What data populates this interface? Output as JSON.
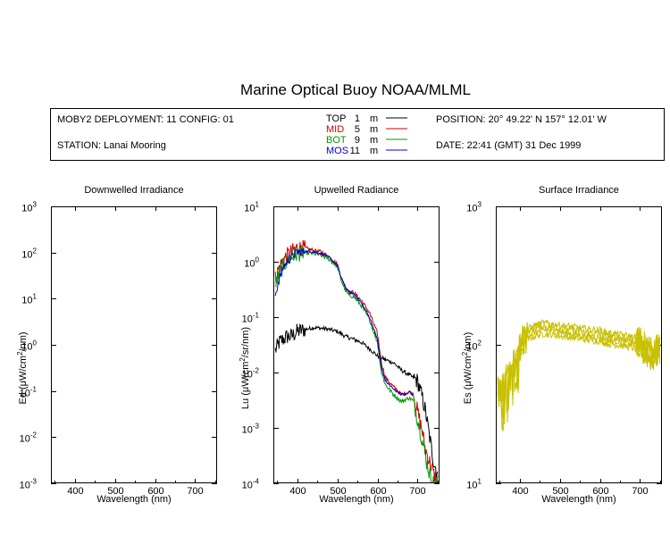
{
  "title": "Marine Optical Buoy NOAA/MLML",
  "info": {
    "deployment": "MOBY2 DEPLOYMENT: 11 CONFIG: 01",
    "station": "STATION: Lanai Mooring",
    "position": "POSITION: 20° 49.22' N   157° 12.01' W",
    "date": "DATE: 22:41 (GMT) 31 Dec 1999",
    "legend": [
      {
        "label": "TOP",
        "depth": "1",
        "unit": "m",
        "color": "#000000"
      },
      {
        "label": "MID",
        "depth": "5",
        "unit": "m",
        "color": "#cc0000"
      },
      {
        "label": "BOT",
        "depth": "9",
        "unit": "m",
        "color": "#009900"
      },
      {
        "label": "MOS",
        "depth": "11",
        "unit": "m",
        "color": "#0000cc"
      }
    ]
  },
  "chart_data": [
    {
      "type": "line",
      "title": "Downwelled Irradiance",
      "xlabel": "Wavelength (nm)",
      "ylabel_main": "Ed  (",
      "ylabel_mu": "μ",
      "ylabel_units": "W/cm",
      "ylabel_sup": "2",
      "ylabel_end": "/nm)",
      "xlim": [
        340,
        755
      ],
      "ylim": [
        0.001,
        1000
      ],
      "yscale": "log",
      "xticks": [
        "400",
        "500",
        "600",
        "700"
      ],
      "yticks": [
        {
          "base": "10",
          "exp": "-3"
        },
        {
          "base": "10",
          "exp": "-2"
        },
        {
          "base": "10",
          "exp": "-1"
        },
        {
          "base": "10",
          "exp": "0"
        },
        {
          "base": "10",
          "exp": "1"
        },
        {
          "base": "10",
          "exp": "2"
        },
        {
          "base": "10",
          "exp": "3"
        }
      ],
      "series": []
    },
    {
      "type": "line",
      "title": "Upwelled Radiance",
      "xlabel": "Wavelength (nm)",
      "ylabel_main": "Lu  (",
      "ylabel_mu": "μ",
      "ylabel_units": "W/cm",
      "ylabel_sup": "2",
      "ylabel_end": "/sr/nm)",
      "xlim": [
        340,
        755
      ],
      "ylim": [
        0.0001,
        10
      ],
      "yscale": "log",
      "xticks": [
        "400",
        "500",
        "600",
        "700"
      ],
      "yticks": [
        {
          "base": "10",
          "exp": "-4"
        },
        {
          "base": "10",
          "exp": "-3"
        },
        {
          "base": "10",
          "exp": "-2"
        },
        {
          "base": "10",
          "exp": "-1"
        },
        {
          "base": "10",
          "exp": "0"
        },
        {
          "base": "10",
          "exp": "1"
        }
      ],
      "series": [
        {
          "name": "TOP",
          "color": "#000000",
          "noise": 0.3,
          "x": [
            345,
            355,
            365,
            375,
            385,
            400,
            420,
            440,
            460,
            480,
            500,
            520,
            540,
            560,
            580,
            600,
            620,
            640,
            660,
            680,
            700,
            710,
            720,
            730,
            740,
            750
          ],
          "y": [
            0.025,
            0.035,
            0.04,
            0.045,
            0.045,
            0.055,
            0.06,
            0.065,
            0.063,
            0.06,
            0.055,
            0.045,
            0.04,
            0.035,
            0.027,
            0.02,
            0.017,
            0.015,
            0.011,
            0.009,
            0.007,
            0.004,
            0.002,
            0.0007,
            0.00025,
            0.00015
          ]
        },
        {
          "name": "MID",
          "color": "#cc0000",
          "noise": 0.3,
          "x": [
            345,
            355,
            365,
            375,
            385,
            400,
            420,
            440,
            460,
            480,
            500,
            510,
            520,
            530,
            540,
            560,
            580,
            600,
            610,
            620,
            640,
            660,
            680,
            690,
            700,
            710,
            720,
            730,
            740,
            750
          ],
          "y": [
            0.5,
            0.8,
            1.1,
            1.3,
            1.5,
            1.8,
            1.75,
            1.6,
            1.5,
            1.2,
            0.9,
            0.5,
            0.35,
            0.28,
            0.28,
            0.2,
            0.12,
            0.05,
            0.015,
            0.008,
            0.0055,
            0.004,
            0.0045,
            0.004,
            0.002,
            0.001,
            0.0004,
            0.00025,
            0.00015,
            0.0001
          ]
        },
        {
          "name": "BOT",
          "color": "#009900",
          "noise": 0.3,
          "x": [
            345,
            355,
            365,
            375,
            385,
            400,
            420,
            440,
            460,
            480,
            500,
            510,
            520,
            530,
            540,
            560,
            580,
            600,
            610,
            620,
            640,
            660,
            680,
            690,
            700,
            710,
            720,
            730,
            740,
            750
          ],
          "y": [
            0.35,
            0.6,
            0.85,
            1.05,
            1.2,
            1.4,
            1.45,
            1.4,
            1.3,
            1.1,
            0.8,
            0.45,
            0.3,
            0.24,
            0.24,
            0.16,
            0.09,
            0.035,
            0.01,
            0.006,
            0.004,
            0.003,
            0.0035,
            0.003,
            0.0015,
            0.0007,
            0.0003,
            0.00015,
            0.0001,
            0.0001
          ]
        },
        {
          "name": "MOS",
          "color": "#0000cc",
          "noise": 0.15,
          "x": [
            345,
            355,
            365,
            375,
            385,
            400,
            420,
            440,
            460,
            480,
            500,
            510,
            520,
            530,
            540,
            560,
            580,
            600,
            610,
            620,
            640,
            660,
            670,
            680,
            690
          ],
          "y": [
            0.25,
            0.5,
            0.8,
            1.0,
            1.2,
            1.5,
            1.55,
            1.5,
            1.4,
            1.2,
            0.85,
            0.5,
            0.35,
            0.28,
            0.27,
            0.18,
            0.1,
            0.04,
            0.012,
            0.007,
            0.005,
            0.004,
            0.004,
            0.0045,
            0.004
          ]
        }
      ]
    },
    {
      "type": "line",
      "title": "Surface Irradiance",
      "xlabel": "Wavelength (nm)",
      "ylabel_main": "Es  (",
      "ylabel_mu": "μ",
      "ylabel_units": "W/cm",
      "ylabel_sup": "2",
      "ylabel_end": "/nm)",
      "xlim": [
        340,
        755
      ],
      "ylim": [
        10,
        1000
      ],
      "yscale": "log",
      "xticks": [
        "400",
        "500",
        "600",
        "700"
      ],
      "yticks": [
        {
          "base": "10",
          "exp": "1"
        },
        {
          "base": "10",
          "exp": "2"
        },
        {
          "base": "10",
          "exp": "3"
        }
      ],
      "series": [
        {
          "name": "Es",
          "color": "#c8c000",
          "noise": 0.2,
          "copies": 4,
          "x": [
            345,
            355,
            365,
            375,
            385,
            395,
            405,
            420,
            440,
            460,
            480,
            500,
            520,
            540,
            560,
            580,
            600,
            620,
            640,
            660,
            680,
            700,
            710,
            720,
            730,
            740,
            750
          ],
          "y": [
            50,
            45,
            55,
            60,
            75,
            85,
            105,
            120,
            128,
            132,
            130,
            127,
            125,
            123,
            120,
            118,
            117,
            112,
            110,
            108,
            105,
            100,
            95,
            90,
            85,
            90,
            95
          ]
        }
      ]
    }
  ]
}
